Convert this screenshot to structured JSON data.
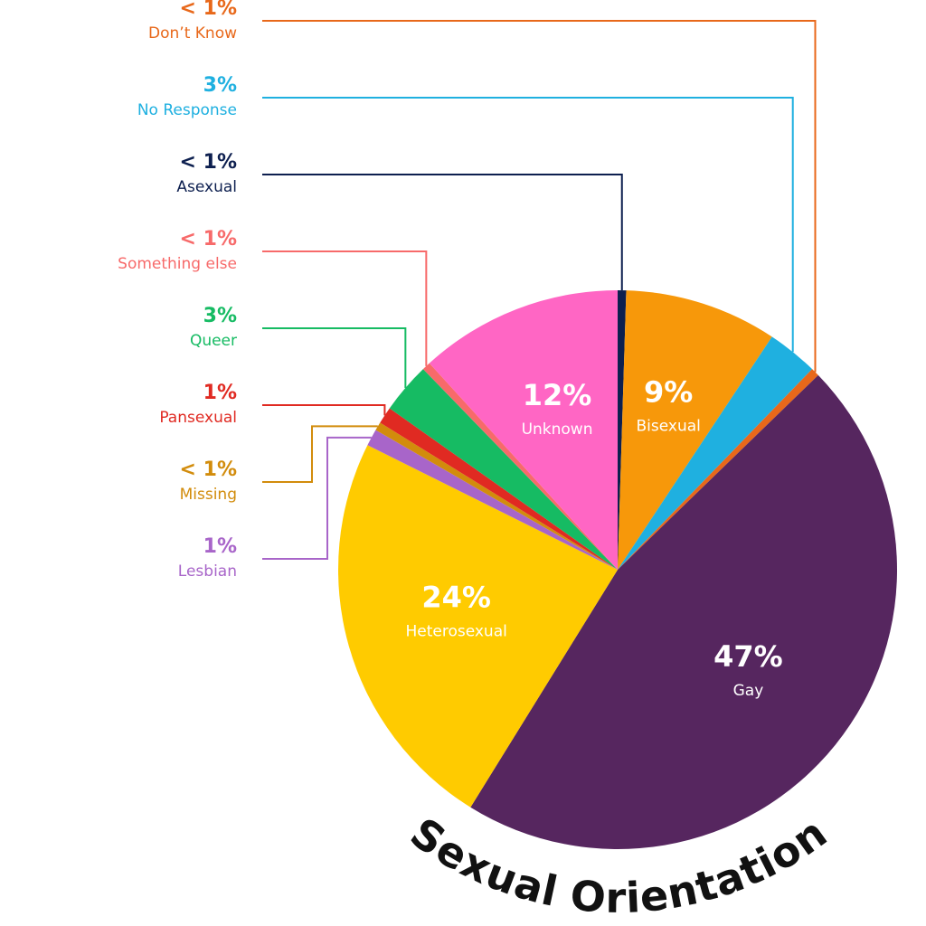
{
  "chart_data": {
    "type": "pie",
    "title": "Sexual Orientation",
    "categories": [
      "Asexual",
      "Bisexual",
      "No Response",
      "Don’t Know",
      "Gay",
      "Heterosexual",
      "Lesbian",
      "Missing",
      "Pansexual",
      "Queer",
      "Something else",
      "Unknown"
    ],
    "values": [
      0.5,
      9,
      3,
      0.5,
      47,
      24,
      1,
      0.5,
      1,
      3,
      0.5,
      12
    ],
    "value_labels": [
      "< 1%",
      "9%",
      "3%",
      "< 1%",
      "47%",
      "24%",
      "1%",
      "< 1%",
      "1%",
      "3%",
      "< 1%",
      "12%"
    ],
    "colors": [
      "#0d1f4f",
      "#f7980a",
      "#1fb0e0",
      "#e8681a",
      "#56265f",
      "#ffcb00",
      "#a865c9",
      "#d28c0c",
      "#e02a22",
      "#16bb63",
      "#f76a6a",
      "#ff66c4"
    ]
  }
}
